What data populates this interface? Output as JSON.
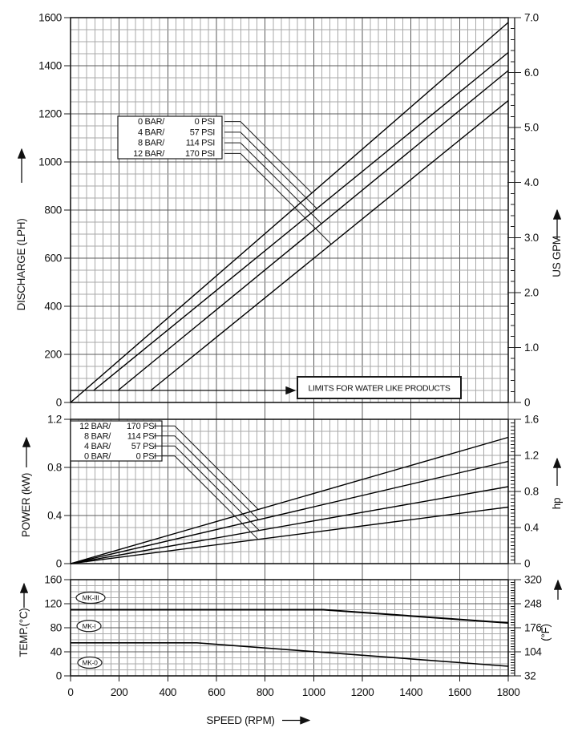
{
  "figure": {
    "kind": "pump-performance-curves"
  },
  "x_axis": {
    "title": "SPEED (RPM)",
    "min": 0,
    "max": 1800,
    "major": 200,
    "minor_div": 6,
    "ticks": [
      {
        "v": 0,
        "t": "0"
      },
      {
        "v": 200,
        "t": "200"
      },
      {
        "v": 400,
        "t": "400"
      },
      {
        "v": 600,
        "t": "600"
      },
      {
        "v": 800,
        "t": "800"
      },
      {
        "v": 1000,
        "t": "1000"
      },
      {
        "v": 1200,
        "t": "1200"
      },
      {
        "v": 1400,
        "t": "1400"
      },
      {
        "v": 1600,
        "t": "1600"
      },
      {
        "v": 1800,
        "t": "1800"
      }
    ]
  },
  "chart_data": [
    {
      "type": "line",
      "name": "discharge-vs-speed",
      "y_left": {
        "title": "DISCHARGE (LPH)",
        "min": 0,
        "max": 1600,
        "minor": 50,
        "ticks": [
          {
            "v": 0,
            "t": "0"
          },
          {
            "v": 200,
            "t": "200"
          },
          {
            "v": 400,
            "t": "400"
          },
          {
            "v": 600,
            "t": "600"
          },
          {
            "v": 800,
            "t": "800"
          },
          {
            "v": 1000,
            "t": "1000"
          },
          {
            "v": 1200,
            "t": "1200"
          },
          {
            "v": 1400,
            "t": "1400"
          },
          {
            "v": 1600,
            "t": "1600"
          }
        ]
      },
      "y_right": {
        "title": "US GPM",
        "min": 0,
        "max": 7.0,
        "minor": 0.2,
        "ticks": [
          {
            "v": 0,
            "t": "0"
          },
          {
            "v": 1,
            "t": "1.0"
          },
          {
            "v": 2,
            "t": "2.0"
          },
          {
            "v": 3,
            "t": "3.0"
          },
          {
            "v": 4,
            "t": "4.0"
          },
          {
            "v": 5,
            "t": "5.0"
          },
          {
            "v": 6,
            "t": "6.0"
          },
          {
            "v": 7,
            "t": "7.0"
          }
        ]
      },
      "series": [
        {
          "name": "0 BAR / 0 PSI",
          "points": [
            [
              0,
              0
            ],
            [
              1800,
              1580
            ]
          ]
        },
        {
          "name": "4 BAR / 57 PSI",
          "points": [
            [
              95,
              50
            ],
            [
              1800,
              1455
            ]
          ]
        },
        {
          "name": "8 BAR / 114 PSI",
          "points": [
            [
              195,
              50
            ],
            [
              1800,
              1380
            ]
          ]
        },
        {
          "name": "12 BAR / 170 PSI",
          "points": [
            [
              330,
              50
            ],
            [
              1800,
              1255
            ]
          ]
        }
      ],
      "legend": {
        "rows": [
          {
            "bar": "0 BAR/",
            "psi": "0 PSI"
          },
          {
            "bar": "4 BAR/",
            "psi": "57 PSI"
          },
          {
            "bar": "8 BAR/",
            "psi": "114 PSI"
          },
          {
            "bar": "12 BAR/",
            "psi": "170 PSI"
          }
        ]
      },
      "annotation": {
        "text": "LIMITS FOR WATER LIKE PRODUCTS",
        "at_lph": 50
      }
    },
    {
      "type": "line",
      "name": "power-vs-speed",
      "y_left": {
        "title": "POWER (kW)",
        "min": 0,
        "max": 1.2,
        "minor": 0.1,
        "ticks": [
          {
            "v": 0,
            "t": "0"
          },
          {
            "v": 0.4,
            "t": "0.4"
          },
          {
            "v": 0.8,
            "t": "0.8"
          },
          {
            "v": 1.2,
            "t": "1.2"
          }
        ]
      },
      "y_right": {
        "title": "hp",
        "min": 0,
        "max": 1.6,
        "minor": 0.04,
        "ticks": [
          {
            "v": 0,
            "t": "0"
          },
          {
            "v": 0.4,
            "t": "0.4"
          },
          {
            "v": 0.8,
            "t": "0.8"
          },
          {
            "v": 1.2,
            "t": "1.2"
          },
          {
            "v": 1.6,
            "t": "1.6"
          }
        ]
      },
      "series": [
        {
          "name": "12 BAR / 170 PSI",
          "points": [
            [
              0,
              0
            ],
            [
              1800,
              1.05
            ]
          ]
        },
        {
          "name": "8 BAR / 114 PSI",
          "points": [
            [
              0,
              0
            ],
            [
              1800,
              0.85
            ]
          ]
        },
        {
          "name": "4 BAR / 57 PSI",
          "points": [
            [
              0,
              0
            ],
            [
              1800,
              0.64
            ]
          ]
        },
        {
          "name": "0 BAR / 0 PSI",
          "points": [
            [
              0,
              0
            ],
            [
              1800,
              0.47
            ]
          ]
        }
      ],
      "legend": {
        "rows": [
          {
            "bar": "12 BAR/",
            "psi": "170 PSI"
          },
          {
            "bar": "8 BAR/",
            "psi": "114 PSI"
          },
          {
            "bar": "4 BAR/",
            "psi": "57 PSI"
          },
          {
            "bar": "0 BAR/",
            "psi": "0 PSI"
          }
        ]
      }
    },
    {
      "type": "line",
      "name": "temperature-limit-vs-speed",
      "y_left": {
        "title": "TEMP.(°C)",
        "min": 0,
        "max": 160,
        "minor": 10,
        "ticks": [
          {
            "v": 0,
            "t": "0"
          },
          {
            "v": 40,
            "t": "40"
          },
          {
            "v": 80,
            "t": "80"
          },
          {
            "v": 120,
            "t": "120"
          },
          {
            "v": 160,
            "t": "160"
          }
        ]
      },
      "y_right": {
        "title": "(°F)",
        "min": 32,
        "max": 320,
        "minor": 8,
        "ticks": [
          {
            "v": 32,
            "t": "32"
          },
          {
            "v": 104,
            "t": "104"
          },
          {
            "v": 176,
            "t": "176"
          },
          {
            "v": 248,
            "t": "248"
          },
          {
            "v": 320,
            "t": "320"
          }
        ]
      },
      "series": [
        {
          "name": "MK-III / MK-I temperature limit",
          "points": [
            [
              0,
              110
            ],
            [
              1040,
              110
            ],
            [
              1800,
              88
            ]
          ]
        },
        {
          "name": "MK-0 temperature limit",
          "points": [
            [
              0,
              55
            ],
            [
              520,
              55
            ],
            [
              1800,
              16
            ]
          ]
        }
      ],
      "model_labels": [
        {
          "t": "MK-III",
          "c": 130
        },
        {
          "t": "MK-I",
          "c": 83
        },
        {
          "t": "MK-0",
          "c": 22
        }
      ]
    }
  ]
}
